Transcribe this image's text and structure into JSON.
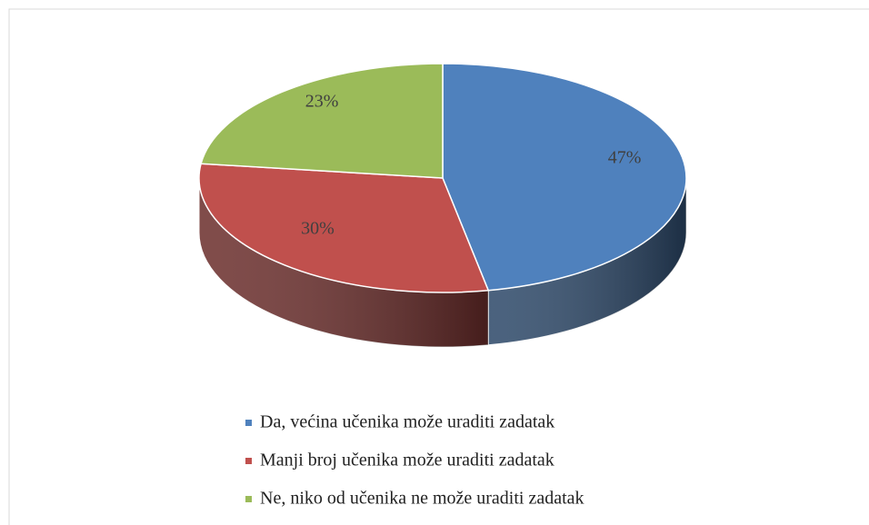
{
  "chart_data": {
    "type": "pie",
    "categories": [
      "Da, većina učenika može uraditi zadatak",
      "Manji broj učenika može uraditi zadatak",
      "Ne, niko od učenika ne može uraditi zadatak"
    ],
    "values": [
      47,
      30,
      23
    ],
    "value_labels": [
      "47%",
      "30%",
      "23%"
    ],
    "colors": [
      "#4f81bd",
      "#c0504d",
      "#9bbb59"
    ],
    "legend": "bottom"
  }
}
